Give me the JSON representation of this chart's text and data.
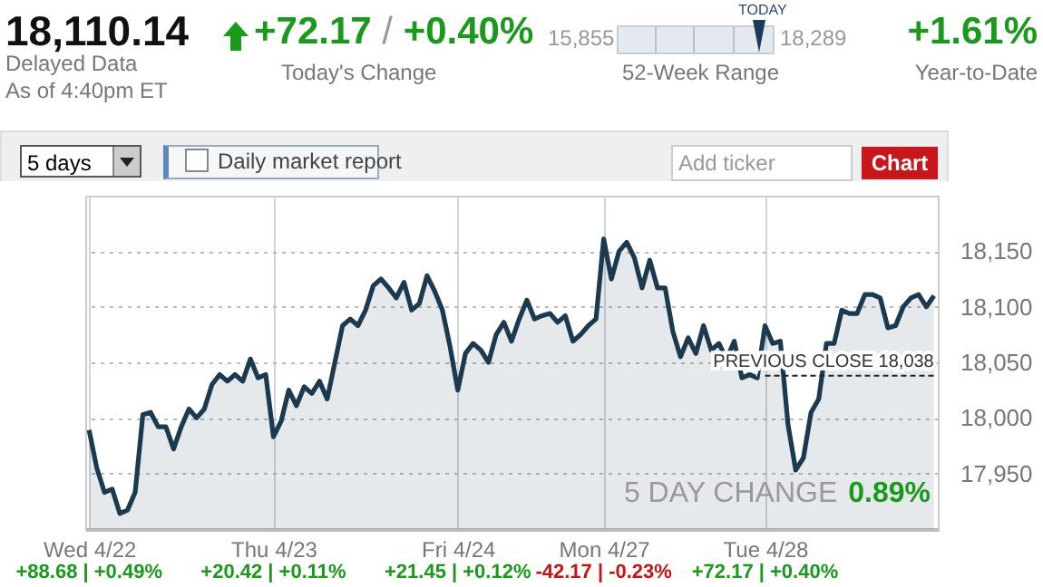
{
  "chart_data": {
    "type": "area",
    "color": "#1b3a50",
    "categories": [
      "Wed 4/22",
      null,
      null,
      null,
      null,
      null,
      null,
      null,
      null,
      null,
      null,
      null,
      null,
      null,
      null,
      null,
      null,
      null,
      null,
      null,
      null,
      null,
      null,
      null,
      "Thu 4/23",
      null,
      null,
      null,
      null,
      null,
      null,
      null,
      null,
      null,
      null,
      null,
      null,
      null,
      null,
      null,
      null,
      null,
      null,
      null,
      null,
      null,
      null,
      null,
      "Fri 4/24",
      null,
      null,
      null,
      null,
      null,
      null,
      null,
      null,
      null,
      null,
      null,
      null,
      null,
      null,
      null,
      null,
      null,
      null,
      "Mon 4/27",
      null,
      null,
      null,
      null,
      null,
      null,
      null,
      null,
      null,
      null,
      null,
      null,
      null,
      null,
      null,
      null,
      null,
      null,
      null,
      null,
      "Tue 4/28",
      null,
      null,
      null,
      null,
      null,
      null,
      null,
      null,
      null,
      null,
      null,
      null,
      null,
      null,
      null,
      null,
      null,
      null,
      null,
      null,
      null,
      null
    ],
    "values": [
      17989,
      17955,
      17933,
      17936,
      17914,
      17917,
      17933,
      18003,
      18005,
      17992,
      17992,
      17972,
      17992,
      18008,
      18000,
      18008,
      18030,
      18039,
      18033,
      18039,
      18033,
      18053,
      18036,
      18039,
      17983,
      17997,
      18025,
      18011,
      18028,
      18022,
      18033,
      18017,
      18050,
      18083,
      18089,
      18083,
      18097,
      18119,
      18125,
      18117,
      18108,
      18122,
      18097,
      18103,
      18128,
      18114,
      18097,
      18064,
      18025,
      18058,
      18067,
      18061,
      18050,
      18075,
      18086,
      18069,
      18089,
      18106,
      18089,
      18092,
      18094,
      18086,
      18092,
      18069,
      18075,
      18083,
      18089,
      18161,
      18125,
      18150,
      18158,
      18144,
      18117,
      18142,
      18117,
      18117,
      18078,
      18055,
      18072,
      18058,
      18083,
      18061,
      18067,
      18053,
      18069,
      18036,
      18039,
      18036,
      18083,
      18067,
      18069,
      17994,
      17953,
      17964,
      18005,
      18017,
      18067,
      18067,
      18097,
      18094,
      18094,
      18111,
      18111,
      18108,
      18081,
      18083,
      18100,
      18108,
      18111,
      18100,
      18110
    ],
    "ylim": [
      17900,
      18200
    ],
    "yticks": [
      {
        "value": 17950,
        "label": "17,950"
      },
      {
        "value": 18000,
        "label": "18,000"
      },
      {
        "value": 18050,
        "label": "18,050"
      },
      {
        "value": 18100,
        "label": "18,100"
      },
      {
        "value": 18150,
        "label": "18,150"
      }
    ],
    "grid": true,
    "ref_lines": [
      {
        "axis": "y",
        "value": 18038,
        "label": "PREVIOUS CLOSE 18,038",
        "line_style": "dashed"
      }
    ],
    "annotations": [
      "18,110.14",
      "Delayed Data",
      "As of 4:40pm ET",
      "+72.17 / +0.40%",
      "Today's Change",
      "15,855",
      "TODAY",
      "18,289",
      "52-Week Range",
      "+1.61%",
      "Year-to-Date",
      "5 days",
      "Daily market report",
      "Add ticker",
      "Chart",
      "5 DAY CHANGE",
      "0.89%",
      "+88.68 | +0.49%",
      "+20.42 | +0.11%",
      "+21.45 | +0.12%",
      "-42.17 | -0.23%",
      "+72.17 | +0.40%"
    ]
  }
}
